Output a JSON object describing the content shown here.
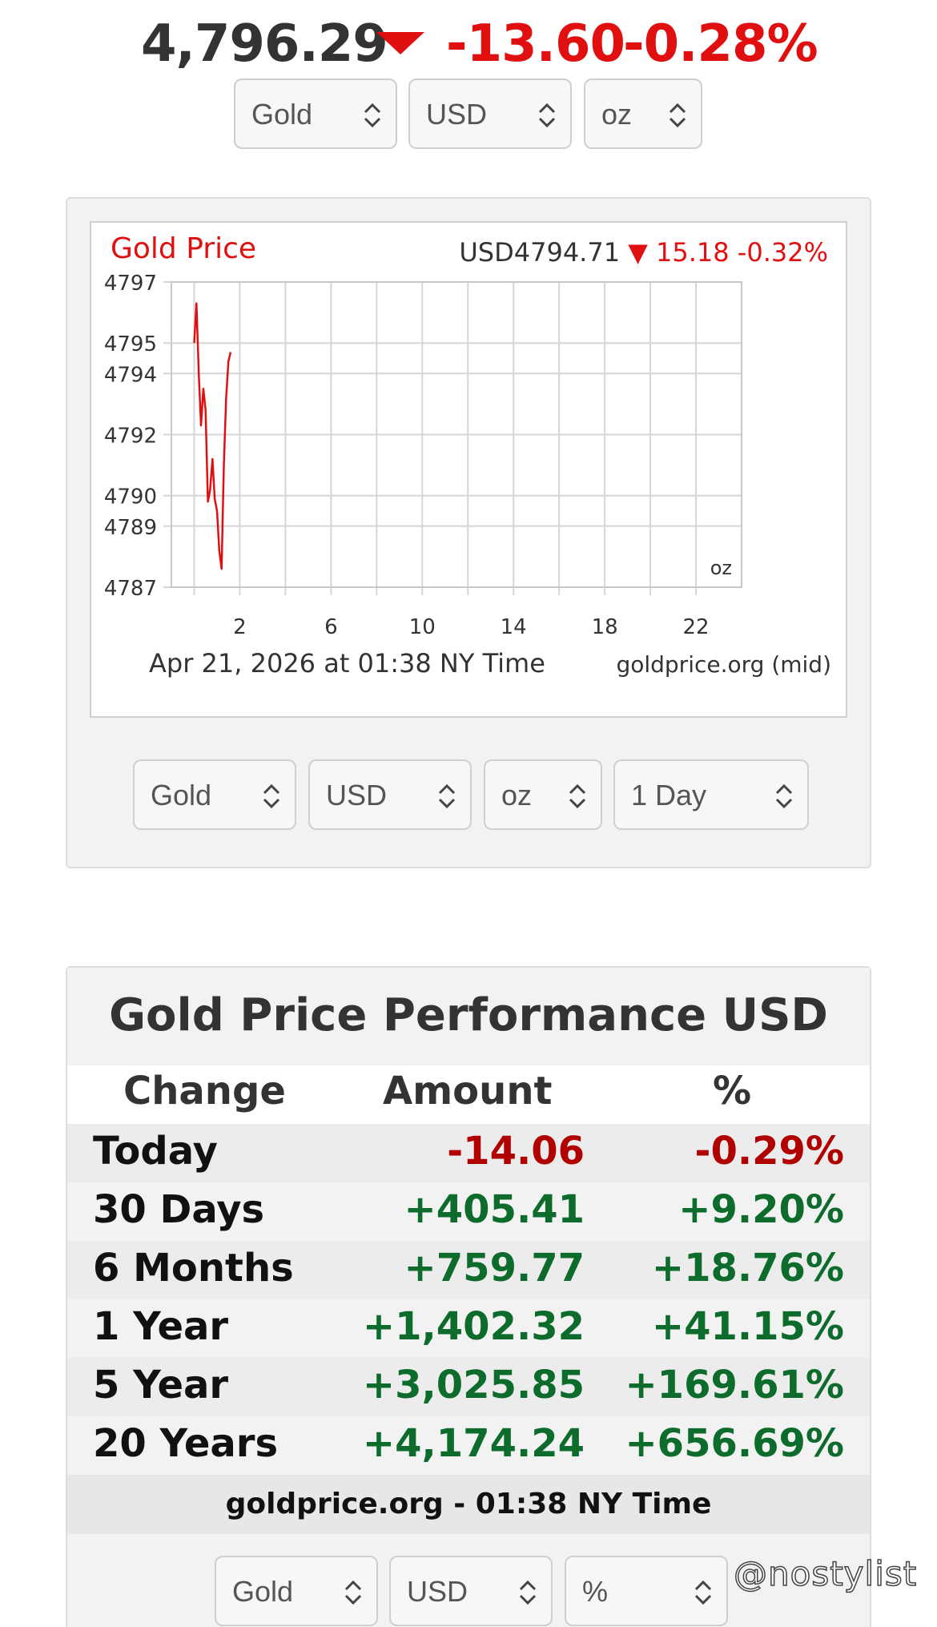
{
  "ticker": {
    "price": "4,796.29",
    "change": "-13.60",
    "percent": "-0.28%",
    "down_color": "#e01010",
    "selects": [
      {
        "value": "Gold"
      },
      {
        "value": "USD"
      },
      {
        "value": "oz"
      }
    ]
  },
  "chart_card": {
    "title": "Gold Price",
    "quote_price": "USD4794.71",
    "quote_change": "15.18 -0.32%",
    "unit": "oz",
    "timestamp": "Apr 21, 2026 at 01:38 NY Time",
    "source": "goldprice.org (mid)",
    "selects": [
      {
        "value": "Gold"
      },
      {
        "value": "USD"
      },
      {
        "value": "oz"
      },
      {
        "value": "1 Day"
      }
    ]
  },
  "chart_data": {
    "type": "line",
    "title": "Gold Price",
    "ylim": [
      4787,
      4797
    ],
    "xlim": [
      -1,
      24
    ],
    "y_ticks": [
      "4797",
      "4795",
      "4794",
      "4792",
      "4790",
      "4789",
      "4787"
    ],
    "x_ticks": [
      "2",
      "6",
      "10",
      "14",
      "18",
      "22"
    ],
    "grid": true,
    "series": [
      {
        "color": "#e01010",
        "x": [
          0.0,
          0.1,
          0.2,
          0.3,
          0.4,
          0.5,
          0.6,
          0.7,
          0.8,
          0.9,
          1.0,
          1.1,
          1.2,
          1.3,
          1.4,
          1.5,
          1.6
        ],
        "y": [
          4795.0,
          4796.3,
          4794.0,
          4792.3,
          4793.5,
          4792.8,
          4789.8,
          4790.2,
          4791.2,
          4789.9,
          4789.5,
          4788.2,
          4787.6,
          4791.0,
          4793.2,
          4794.4,
          4794.7
        ]
      }
    ]
  },
  "performance": {
    "title": "Gold Price Performance USD",
    "headers": [
      "Change",
      "Amount",
      "%"
    ],
    "rows": [
      {
        "label": "Today",
        "amount": "-14.06",
        "percent": "-0.29%",
        "sign": "neg"
      },
      {
        "label": "30 Days",
        "amount": "+405.41",
        "percent": "+9.20%",
        "sign": "pos"
      },
      {
        "label": "6 Months",
        "amount": "+759.77",
        "percent": "+18.76%",
        "sign": "pos"
      },
      {
        "label": "1 Year",
        "amount": "+1,402.32",
        "percent": "+41.15%",
        "sign": "pos"
      },
      {
        "label": "5 Year",
        "amount": "+3,025.85",
        "percent": "+169.61%",
        "sign": "pos"
      },
      {
        "label": "20 Years",
        "amount": "+4,174.24",
        "percent": "+656.69%",
        "sign": "pos"
      }
    ],
    "footer": "goldprice.org - 01:38 NY Time",
    "selects": [
      {
        "value": "Gold"
      },
      {
        "value": "USD"
      },
      {
        "value": "%"
      }
    ],
    "colors": {
      "negative": "#b00000",
      "positive": "#0d6b2c"
    }
  },
  "watermark": "@nostylist"
}
